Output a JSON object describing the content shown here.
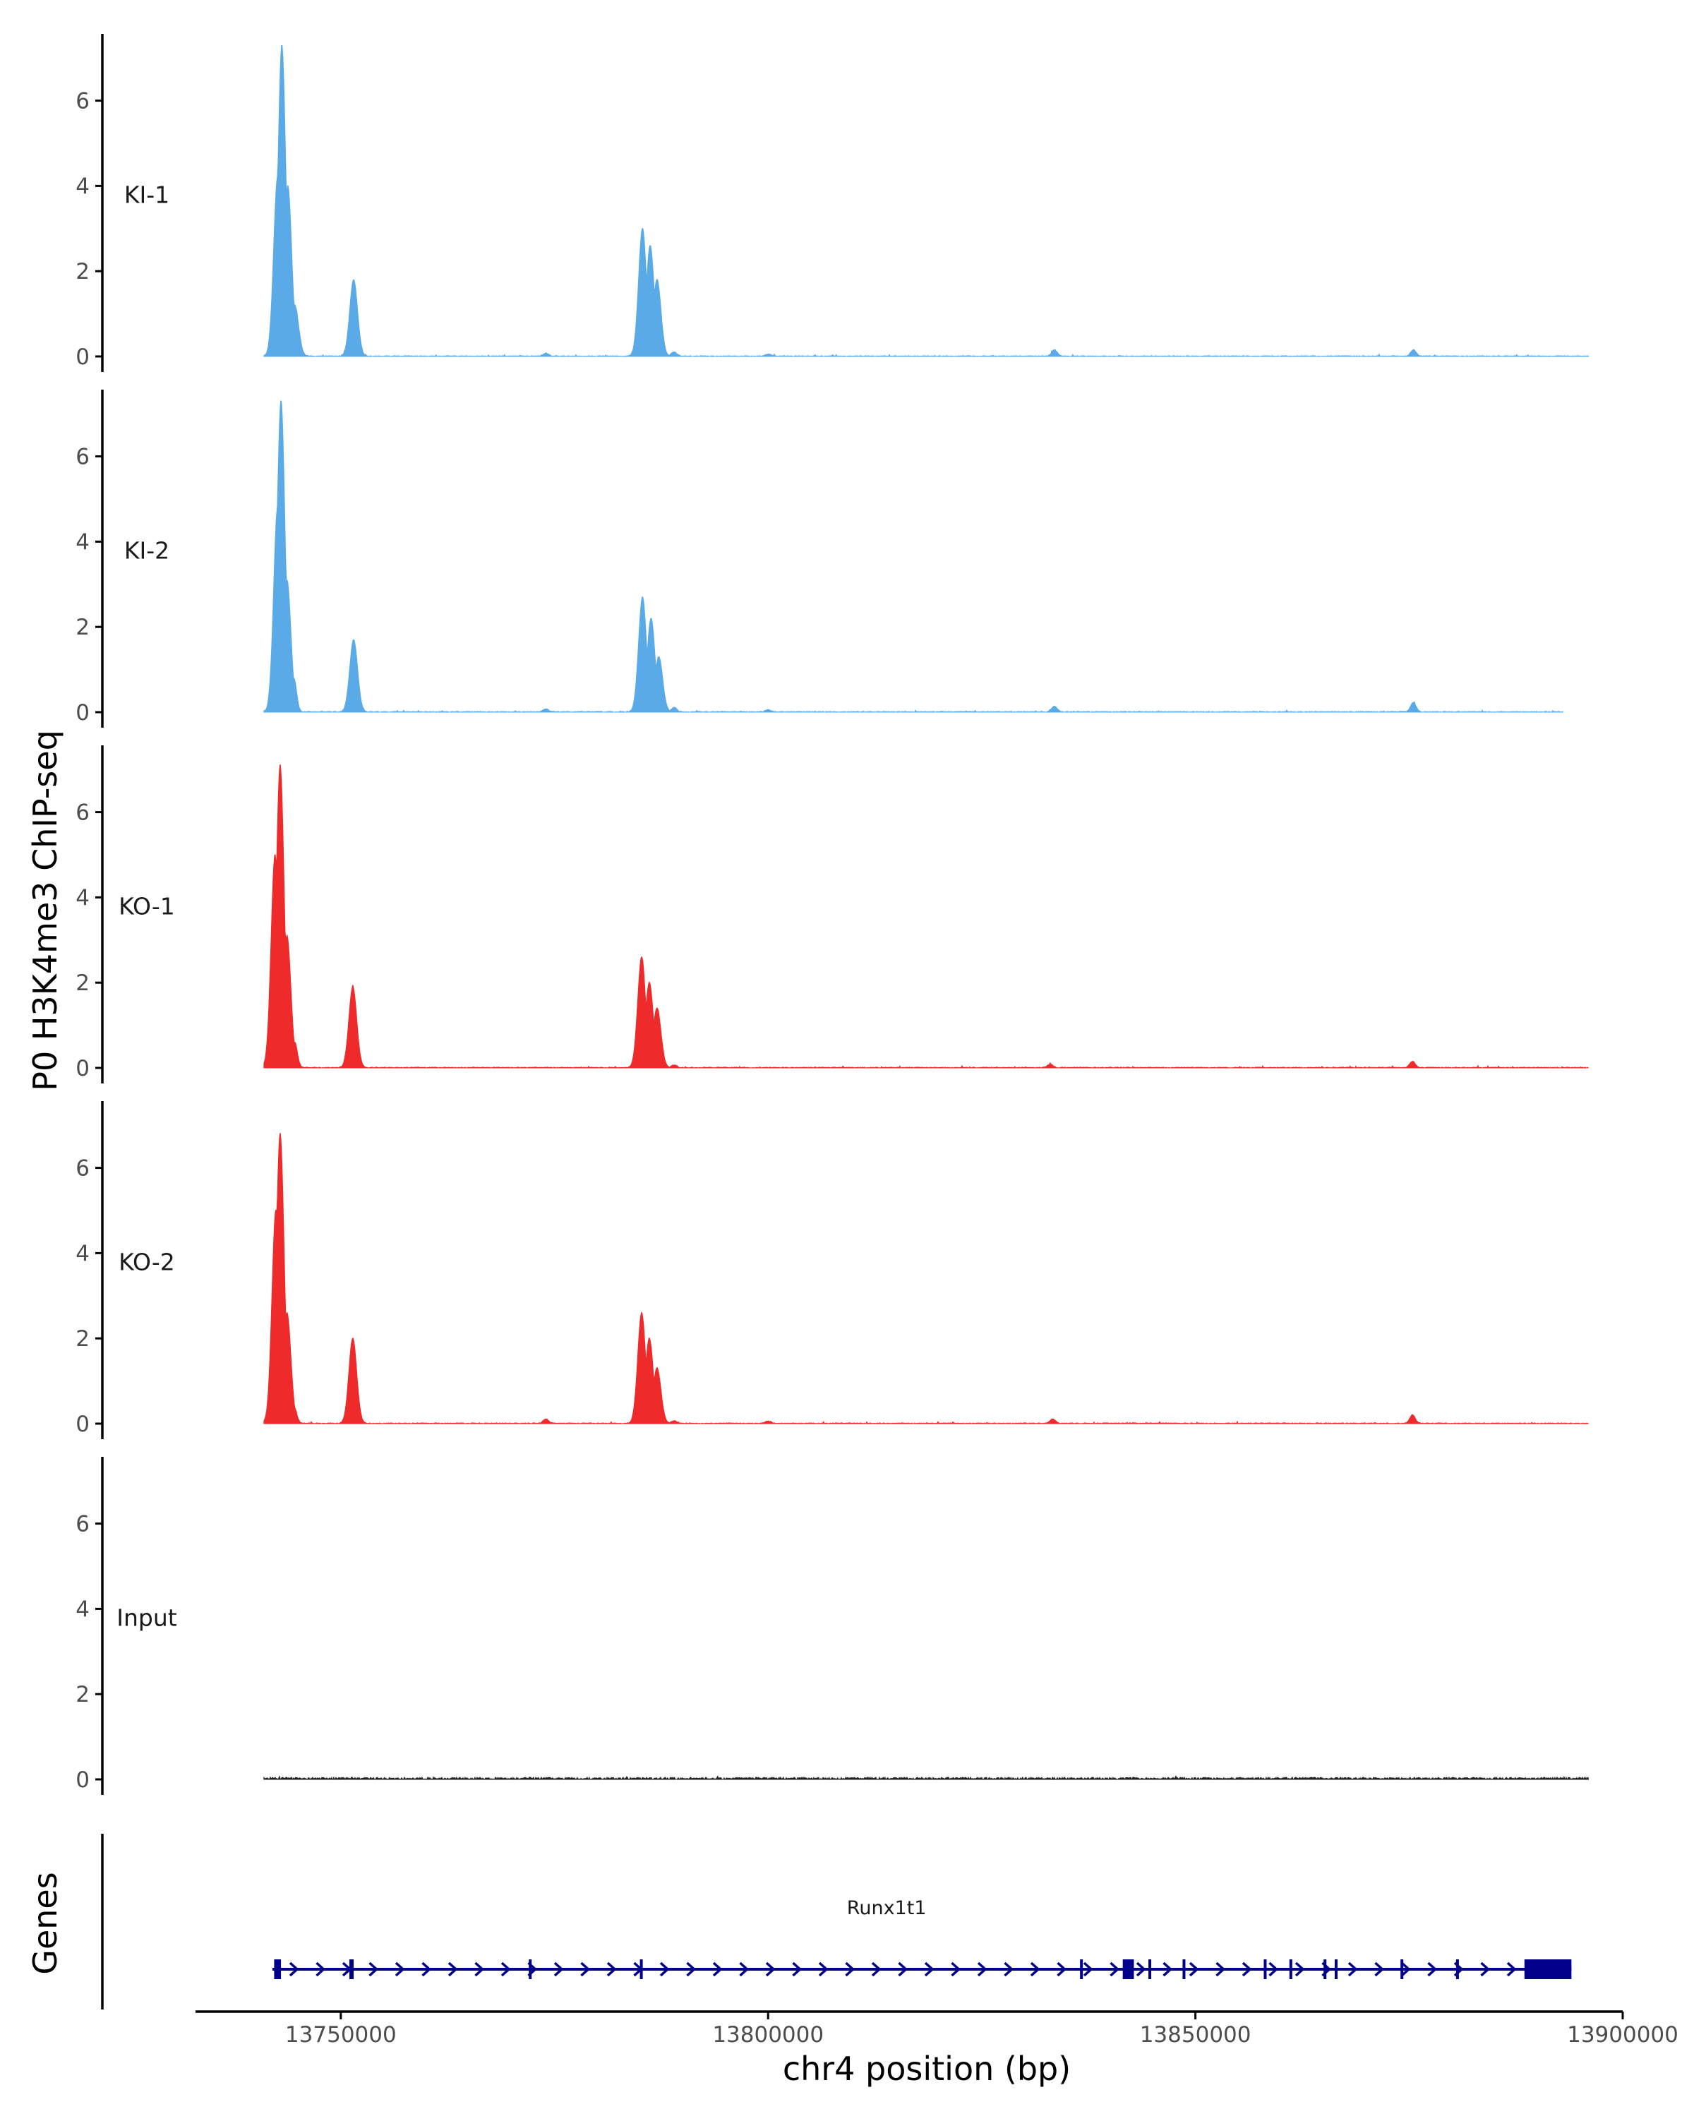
{
  "colors": {
    "ki": "#5aaae8",
    "ko": "#ee2a2a",
    "input": "#222222",
    "gene": "#00008b",
    "axis": "#000000"
  },
  "labels": {
    "y_title": "P0 H3K4me3 ChIP-seq",
    "genes_title": "Genes",
    "x_title": "chr4 position (bp)"
  },
  "chart_data": {
    "type": "area",
    "xlabel": "chr4 position (bp)",
    "ylabel": "P0 H3K4me3 ChIP-seq",
    "xlim": [
      13733000,
      13900000
    ],
    "ylim": [
      0,
      7.6
    ],
    "x_ticks": [
      13750000,
      13800000,
      13850000,
      13900000
    ],
    "x_tick_labels": [
      "13750000",
      "13800000",
      "13850000",
      "13900000"
    ],
    "y_ticks": [
      0,
      2,
      4,
      6
    ],
    "y_tick_labels": [
      "0",
      "2",
      "4",
      "6"
    ],
    "grid": false,
    "tracks": [
      {
        "label": "KI-1",
        "color": "#5aaae8",
        "x_range": [
          13741000,
          13896000
        ],
        "peaks": [
          {
            "x": 13742600,
            "y": 4.2
          },
          {
            "x": 13743100,
            "y": 7.3
          },
          {
            "x": 13743800,
            "y": 4.0
          },
          {
            "x": 13744600,
            "y": 1.2
          },
          {
            "x": 13751500,
            "y": 1.8
          },
          {
            "x": 13774000,
            "y": 0.07
          },
          {
            "x": 13785300,
            "y": 3.0
          },
          {
            "x": 13786200,
            "y": 2.6
          },
          {
            "x": 13787000,
            "y": 1.8
          },
          {
            "x": 13789000,
            "y": 0.1
          },
          {
            "x": 13800000,
            "y": 0.05
          },
          {
            "x": 13833500,
            "y": 0.15
          },
          {
            "x": 13875500,
            "y": 0.15
          }
        ]
      },
      {
        "label": "KI-2",
        "color": "#5aaae8",
        "x_range": [
          13741000,
          13893000
        ],
        "peaks": [
          {
            "x": 13742600,
            "y": 4.8
          },
          {
            "x": 13743000,
            "y": 7.3
          },
          {
            "x": 13743700,
            "y": 3.1
          },
          {
            "x": 13744500,
            "y": 0.8
          },
          {
            "x": 13751500,
            "y": 1.7
          },
          {
            "x": 13774000,
            "y": 0.07
          },
          {
            "x": 13785300,
            "y": 2.7
          },
          {
            "x": 13786300,
            "y": 2.2
          },
          {
            "x": 13787200,
            "y": 1.3
          },
          {
            "x": 13789000,
            "y": 0.1
          },
          {
            "x": 13800000,
            "y": 0.05
          },
          {
            "x": 13833500,
            "y": 0.13
          },
          {
            "x": 13875500,
            "y": 0.22
          }
        ]
      },
      {
        "label": "KO-1",
        "color": "#ee2a2a",
        "x_range": [
          13741000,
          13896000
        ],
        "peaks": [
          {
            "x": 13742300,
            "y": 5.0
          },
          {
            "x": 13742900,
            "y": 7.1
          },
          {
            "x": 13743700,
            "y": 3.1
          },
          {
            "x": 13744600,
            "y": 0.6
          },
          {
            "x": 13751400,
            "y": 1.9
          },
          {
            "x": 13785200,
            "y": 2.6
          },
          {
            "x": 13786100,
            "y": 2.0
          },
          {
            "x": 13787000,
            "y": 1.4
          },
          {
            "x": 13789000,
            "y": 0.06
          },
          {
            "x": 13833000,
            "y": 0.08
          },
          {
            "x": 13875400,
            "y": 0.15
          }
        ]
      },
      {
        "label": "KO-2",
        "color": "#ee2a2a",
        "x_range": [
          13741000,
          13896000
        ],
        "peaks": [
          {
            "x": 13742400,
            "y": 5.0
          },
          {
            "x": 13742900,
            "y": 6.8
          },
          {
            "x": 13743700,
            "y": 2.6
          },
          {
            "x": 13744500,
            "y": 0.4
          },
          {
            "x": 13751400,
            "y": 2.0
          },
          {
            "x": 13774000,
            "y": 0.1
          },
          {
            "x": 13785200,
            "y": 2.6
          },
          {
            "x": 13786100,
            "y": 2.0
          },
          {
            "x": 13787000,
            "y": 1.3
          },
          {
            "x": 13789000,
            "y": 0.06
          },
          {
            "x": 13800000,
            "y": 0.05
          },
          {
            "x": 13833300,
            "y": 0.1
          },
          {
            "x": 13875400,
            "y": 0.2
          }
        ]
      },
      {
        "label": "Input",
        "color": "#222222",
        "x_range": [
          13741000,
          13896000
        ],
        "peaks": []
      }
    ],
    "genes": [
      {
        "name": "Runx1t1",
        "start": 13742000,
        "end": 13894000,
        "exons": [
          [
            13742200,
            13743000
          ],
          [
            13751000,
            13751500
          ],
          [
            13772000,
            13772300
          ],
          [
            13785000,
            13785300
          ],
          [
            13836500,
            13836800
          ],
          [
            13841500,
            13842800
          ],
          [
            13844500,
            13844800
          ],
          [
            13848500,
            13848700
          ],
          [
            13858000,
            13858300
          ],
          [
            13861000,
            13861300
          ],
          [
            13865000,
            13865300
          ],
          [
            13866300,
            13866500
          ],
          [
            13874000,
            13874300
          ],
          [
            13880500,
            13880700
          ],
          [
            13888500,
            13894000
          ]
        ]
      }
    ]
  }
}
